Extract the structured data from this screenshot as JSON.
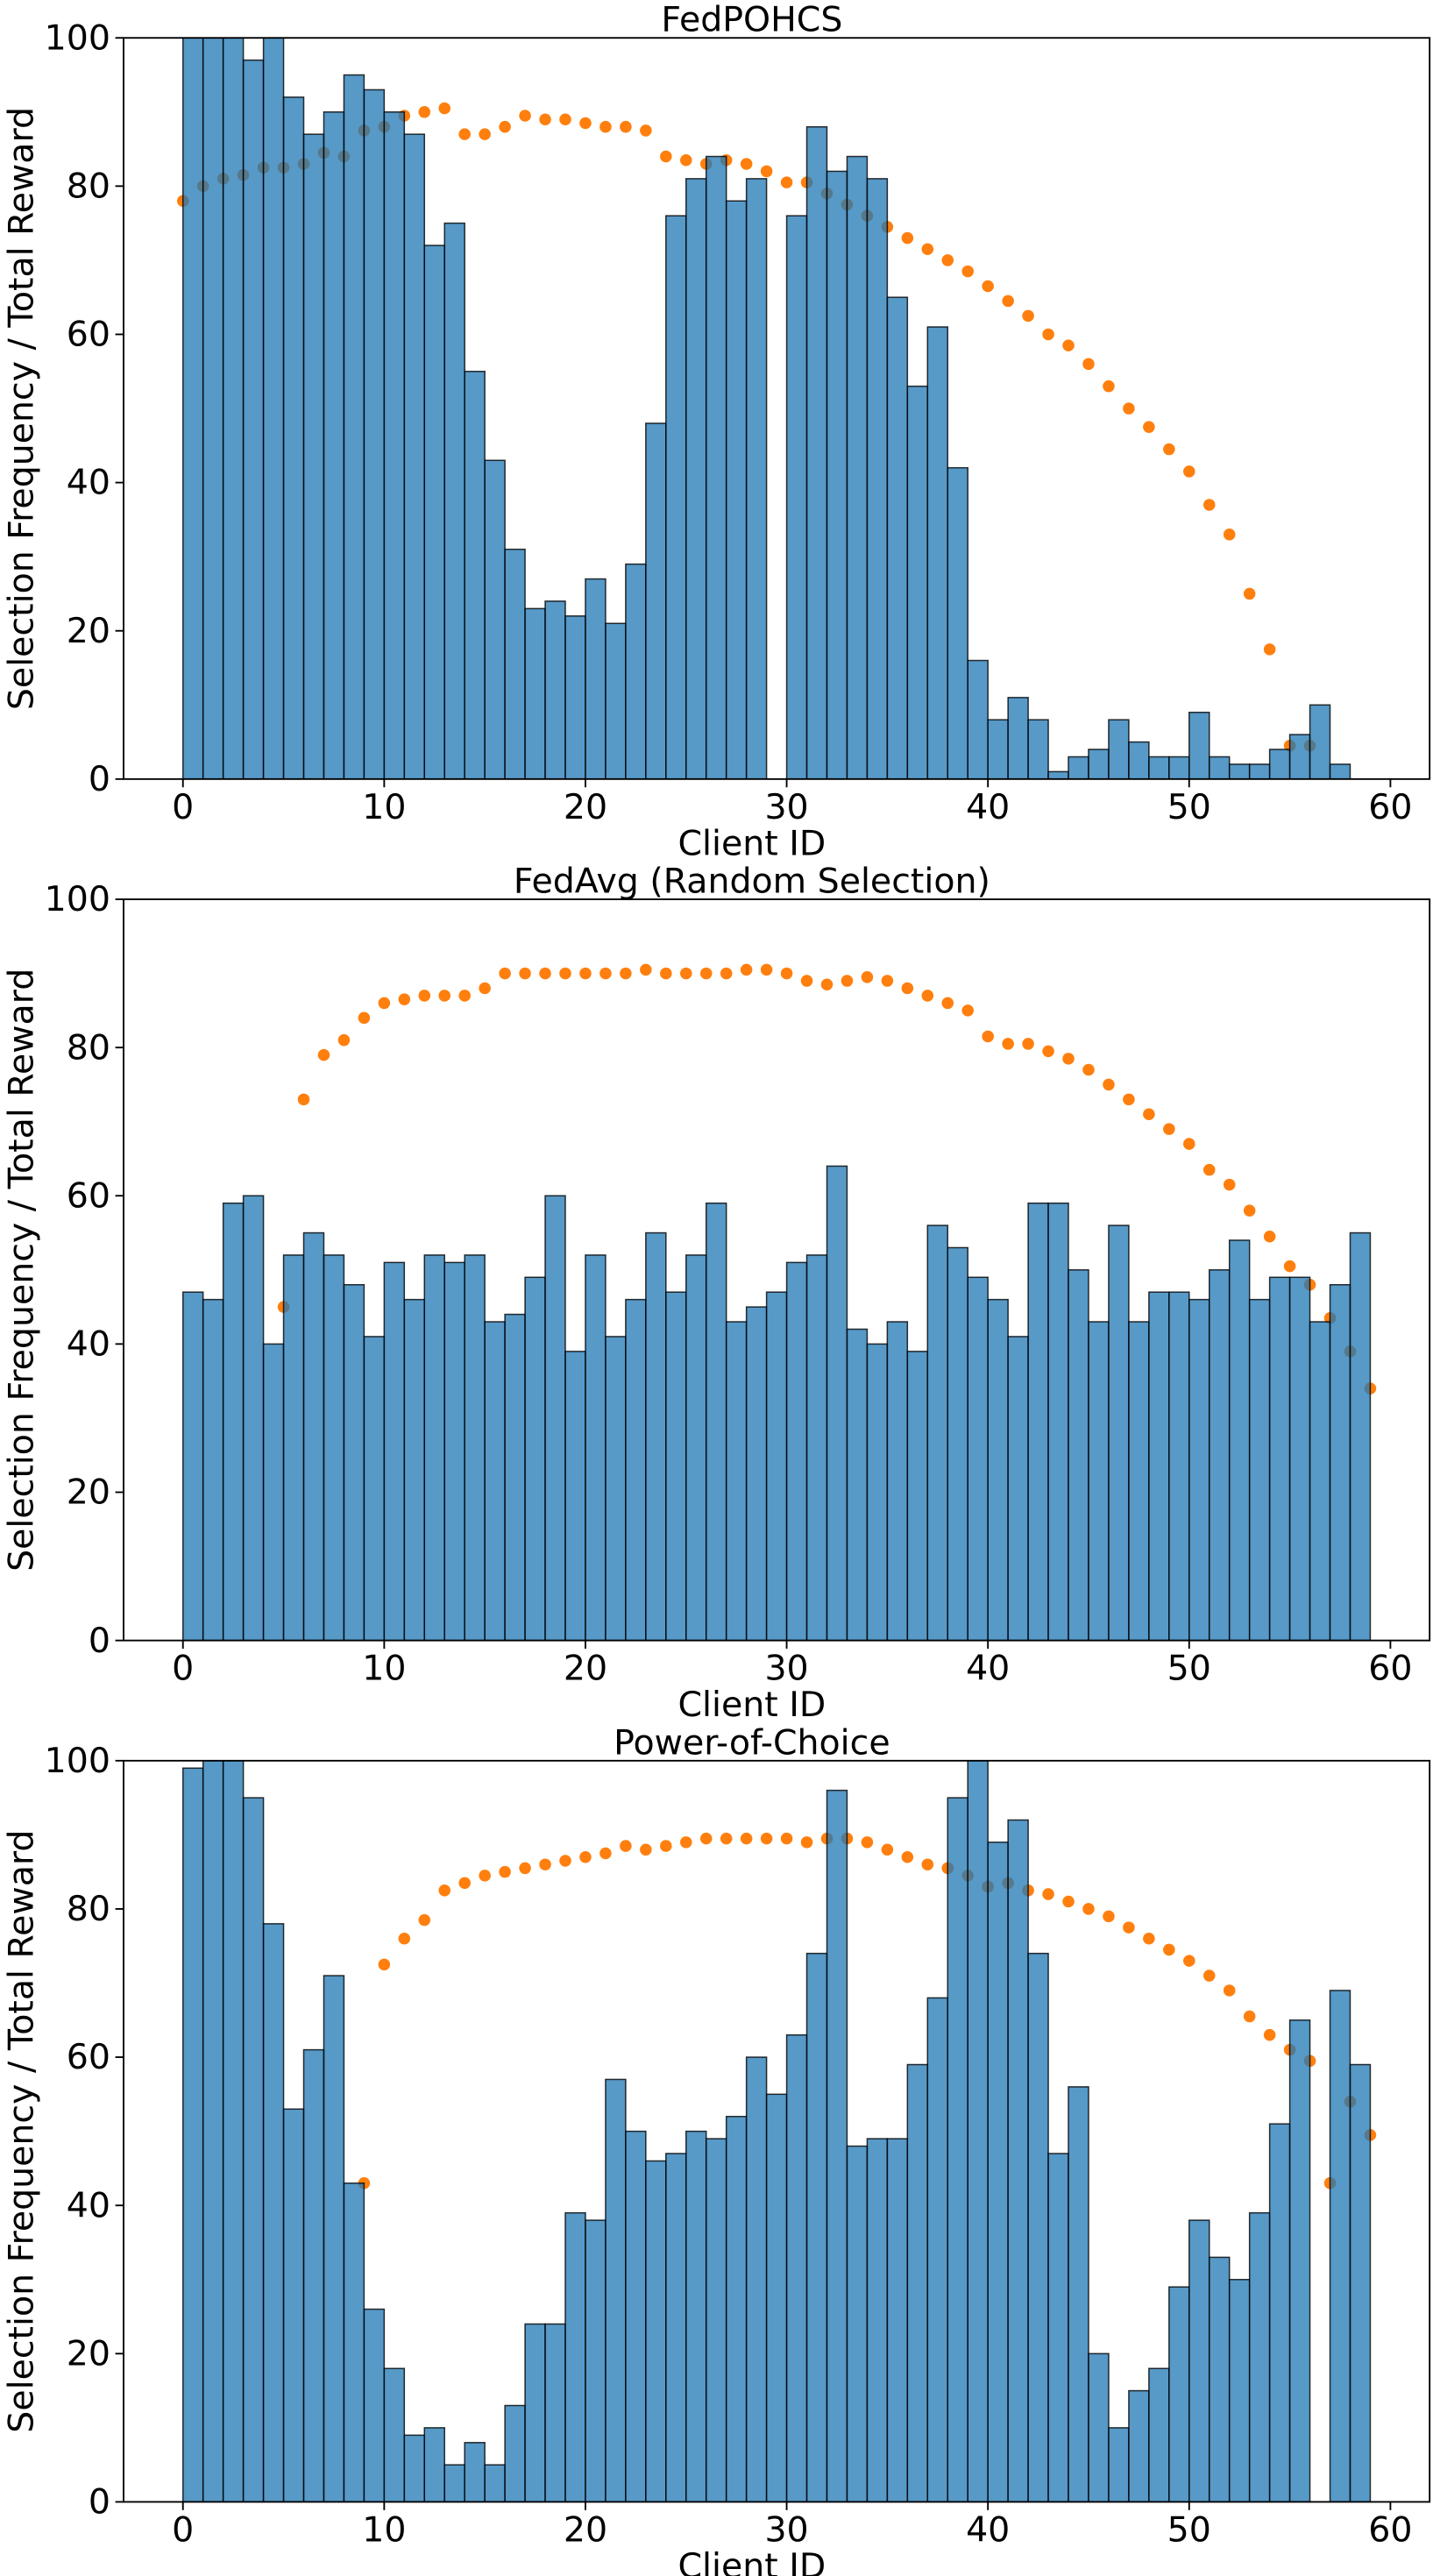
{
  "chart_data": [
    {
      "type": "histogram",
      "title": "FedPOHCS",
      "xlabel": "Client ID",
      "ylabel": "Selection Frequency / Total Reward",
      "bins": [
        0,
        1,
        2,
        3,
        4,
        5,
        6,
        7,
        8,
        9,
        10,
        11,
        12,
        13,
        14,
        15,
        16,
        17,
        18,
        19,
        20,
        21,
        22,
        23,
        24,
        25,
        26,
        27,
        28,
        29,
        30,
        31,
        32,
        33,
        34,
        35,
        36,
        37,
        38,
        39,
        40,
        41,
        42,
        43,
        44,
        45,
        46,
        47,
        48,
        49,
        50,
        51,
        52,
        53,
        54,
        55,
        56,
        57,
        58
      ],
      "values": [
        100,
        100,
        100,
        97,
        100,
        92,
        87,
        90,
        95,
        93,
        90,
        87,
        72,
        75,
        55,
        43,
        31,
        23,
        24,
        22,
        27,
        21,
        29,
        48,
        76,
        81,
        84,
        78,
        81,
        0,
        76,
        88,
        82,
        84,
        81,
        65,
        53,
        61,
        42,
        16,
        8,
        11,
        8,
        1,
        3,
        4,
        8,
        5,
        3,
        3,
        9,
        3,
        2,
        2,
        4,
        6,
        10,
        2
      ],
      "color": "#1f77b4",
      "points": {
        "color": "#ff7f0e",
        "x": [
          0,
          1,
          2,
          3,
          4,
          5,
          6,
          7,
          8,
          9,
          10,
          11,
          12,
          13,
          14,
          15,
          16,
          17,
          18,
          19,
          20,
          21,
          22,
          23,
          24,
          25,
          26,
          27,
          28,
          29,
          30,
          31,
          32,
          33,
          34,
          35,
          36,
          37,
          38,
          39,
          40,
          41,
          42,
          43,
          44,
          45,
          46,
          47,
          48,
          49,
          50,
          51,
          52,
          53,
          54,
          55,
          56
        ],
        "y": [
          78,
          80,
          81,
          81.5,
          82.5,
          82.5,
          83,
          84.5,
          84,
          87.5,
          88,
          89.5,
          90,
          90.5,
          87,
          87,
          88,
          89.5,
          89,
          89,
          88.5,
          88,
          88,
          87.5,
          84,
          83.5,
          83,
          83.5,
          83,
          82,
          80.5,
          80.5,
          79,
          77.5,
          76,
          74.5,
          73,
          71.5,
          70,
          68.5,
          66.5,
          64.5,
          62.5,
          60,
          58.5,
          56,
          53,
          50,
          47.5,
          44.5,
          41.5,
          37,
          33,
          25,
          17.5,
          4.5,
          4.5
        ]
      },
      "xlim": [
        -2.95,
        61.95
      ],
      "xticks": [
        0,
        10,
        20,
        30,
        40,
        50,
        60
      ],
      "ylim": [
        0,
        100
      ],
      "yticks": [
        0,
        20,
        40,
        60,
        80,
        100
      ]
    },
    {
      "type": "histogram",
      "title": "FedAvg (Random Selection)",
      "xlabel": "Client ID",
      "ylabel": "Selection Frequency / Total Reward",
      "bins": [
        0,
        1,
        2,
        3,
        4,
        5,
        6,
        7,
        8,
        9,
        10,
        11,
        12,
        13,
        14,
        15,
        16,
        17,
        18,
        19,
        20,
        21,
        22,
        23,
        24,
        25,
        26,
        27,
        28,
        29,
        30,
        31,
        32,
        33,
        34,
        35,
        36,
        37,
        38,
        39,
        40,
        41,
        42,
        43,
        44,
        45,
        46,
        47,
        48,
        49,
        50,
        51,
        52,
        53,
        54,
        55,
        56,
        57,
        58,
        59
      ],
      "values": [
        47,
        46,
        59,
        60,
        40,
        52,
        55,
        52,
        48,
        41,
        51,
        46,
        52,
        51,
        52,
        43,
        44,
        49,
        60,
        39,
        52,
        41,
        46,
        55,
        47,
        52,
        59,
        43,
        45,
        47,
        51,
        52,
        64,
        42,
        40,
        43,
        39,
        56,
        53,
        49,
        46,
        41,
        59,
        59,
        50,
        43,
        56,
        43,
        47,
        47,
        46,
        50,
        54,
        46,
        49,
        49,
        43,
        48,
        55
      ],
      "color": "#1f77b4",
      "points": {
        "color": "#ff7f0e",
        "x": [
          5,
          6,
          7,
          8,
          9,
          10,
          11,
          12,
          13,
          14,
          15,
          16,
          17,
          18,
          19,
          20,
          21,
          22,
          23,
          24,
          25,
          26,
          27,
          28,
          29,
          30,
          31,
          32,
          33,
          34,
          35,
          36,
          37,
          38,
          39,
          40,
          41,
          42,
          43,
          44,
          45,
          46,
          47,
          48,
          49,
          50,
          51,
          52,
          53,
          54,
          55,
          56,
          57,
          58,
          59
        ],
        "y": [
          45,
          73,
          79,
          81,
          84,
          86,
          86.5,
          87,
          87,
          87,
          88,
          90,
          90,
          90,
          90,
          90,
          90,
          90,
          90.5,
          90,
          90,
          90,
          90,
          90.5,
          90.5,
          90,
          89,
          88.5,
          89,
          89.5,
          89,
          88,
          87,
          86,
          85,
          81.5,
          80.5,
          80.5,
          79.5,
          78.5,
          77,
          75,
          73,
          71,
          69,
          67,
          63.5,
          61.5,
          58,
          54.5,
          50.5,
          48,
          43.5,
          39,
          34
        ]
      },
      "xlim": [
        -2.95,
        61.95
      ],
      "xticks": [
        0,
        10,
        20,
        30,
        40,
        50,
        60
      ],
      "ylim": [
        0,
        100
      ],
      "yticks": [
        0,
        20,
        40,
        60,
        80,
        100
      ]
    },
    {
      "type": "histogram",
      "title": "Power-of-Choice",
      "xlabel": "Client ID",
      "ylabel": "Selection Frequency / Total Reward",
      "bins": [
        0,
        1,
        2,
        3,
        4,
        5,
        6,
        7,
        8,
        9,
        10,
        11,
        12,
        13,
        14,
        15,
        16,
        17,
        18,
        19,
        20,
        21,
        22,
        23,
        24,
        25,
        26,
        27,
        28,
        29,
        30,
        31,
        32,
        33,
        34,
        35,
        36,
        37,
        38,
        39,
        40,
        41,
        42,
        43,
        44,
        45,
        46,
        47,
        48,
        49,
        50,
        51,
        52,
        53,
        54,
        55,
        56,
        57,
        58,
        59
      ],
      "values": [
        99,
        100,
        100,
        95,
        78,
        53,
        61,
        71,
        43,
        26,
        18,
        9,
        10,
        5,
        8,
        5,
        13,
        24,
        24,
        39,
        38,
        57,
        50,
        46,
        47,
        50,
        49,
        52,
        60,
        55,
        63,
        74,
        96,
        48,
        49,
        49,
        59,
        68,
        95,
        100,
        89,
        92,
        74,
        47,
        56,
        20,
        10,
        15,
        18,
        29,
        38,
        33,
        30,
        39,
        51,
        65,
        0,
        69,
        59
      ],
      "color": "#1f77b4",
      "points": {
        "color": "#ff7f0e",
        "x": [
          9,
          10,
          11,
          12,
          13,
          14,
          15,
          16,
          17,
          18,
          19,
          20,
          21,
          22,
          23,
          24,
          25,
          26,
          27,
          28,
          29,
          30,
          31,
          32,
          33,
          34,
          35,
          36,
          37,
          38,
          39,
          40,
          41,
          42,
          43,
          44,
          45,
          46,
          47,
          48,
          49,
          50,
          51,
          52,
          53,
          54,
          55,
          56,
          57,
          58,
          59
        ],
        "y": [
          43,
          72.5,
          76,
          78.5,
          82.5,
          83.5,
          84.5,
          85,
          85.5,
          86,
          86.5,
          87,
          87.5,
          88.5,
          88,
          88.5,
          89,
          89.5,
          89.5,
          89.5,
          89.5,
          89.5,
          89,
          89.5,
          89.5,
          89,
          88,
          87,
          86,
          85.5,
          84.5,
          83,
          83.5,
          82.5,
          82,
          81,
          80,
          79,
          77.5,
          76,
          74.5,
          73,
          71,
          69,
          65.5,
          63,
          61,
          59.5,
          43,
          54,
          49.5
        ]
      },
      "xlim": [
        -2.95,
        61.95
      ],
      "xticks": [
        0,
        10,
        20,
        30,
        40,
        50,
        60
      ],
      "ylim": [
        0,
        100
      ],
      "yticks": [
        0,
        20,
        40,
        60,
        80,
        100
      ]
    }
  ]
}
